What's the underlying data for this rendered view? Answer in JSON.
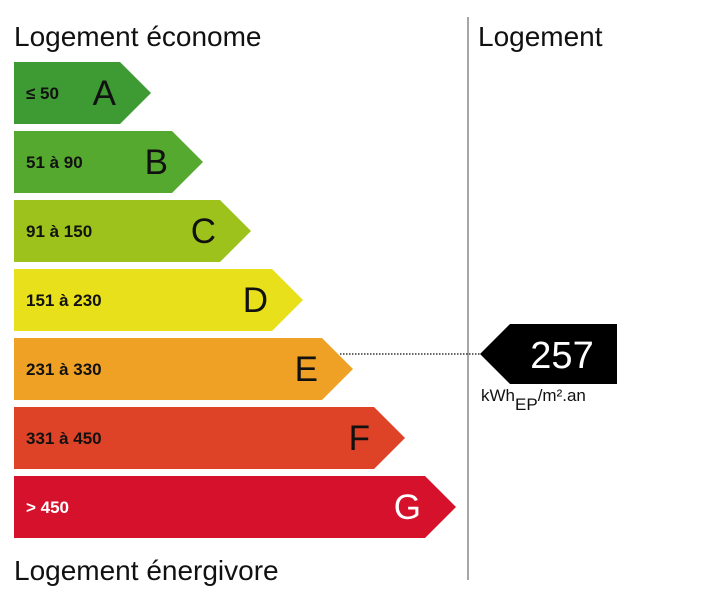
{
  "header": {
    "left_top": "Logement économe",
    "right_top": "Logement",
    "left_bottom": "Logement énergivore"
  },
  "classes": [
    {
      "range": "≤ 50",
      "letter": "A"
    },
    {
      "range": "51 à 90",
      "letter": "B"
    },
    {
      "range": "91 à 150",
      "letter": "C"
    },
    {
      "range": "151 à 230",
      "letter": "D"
    },
    {
      "range": "231 à 330",
      "letter": "E"
    },
    {
      "range": "331 à 450",
      "letter": "F"
    },
    {
      "range": "> 450",
      "letter": "G"
    }
  ],
  "indicator": {
    "value": "257",
    "unit_main": "kWh",
    "unit_sub": "EP",
    "unit_tail": "/m².an"
  }
}
